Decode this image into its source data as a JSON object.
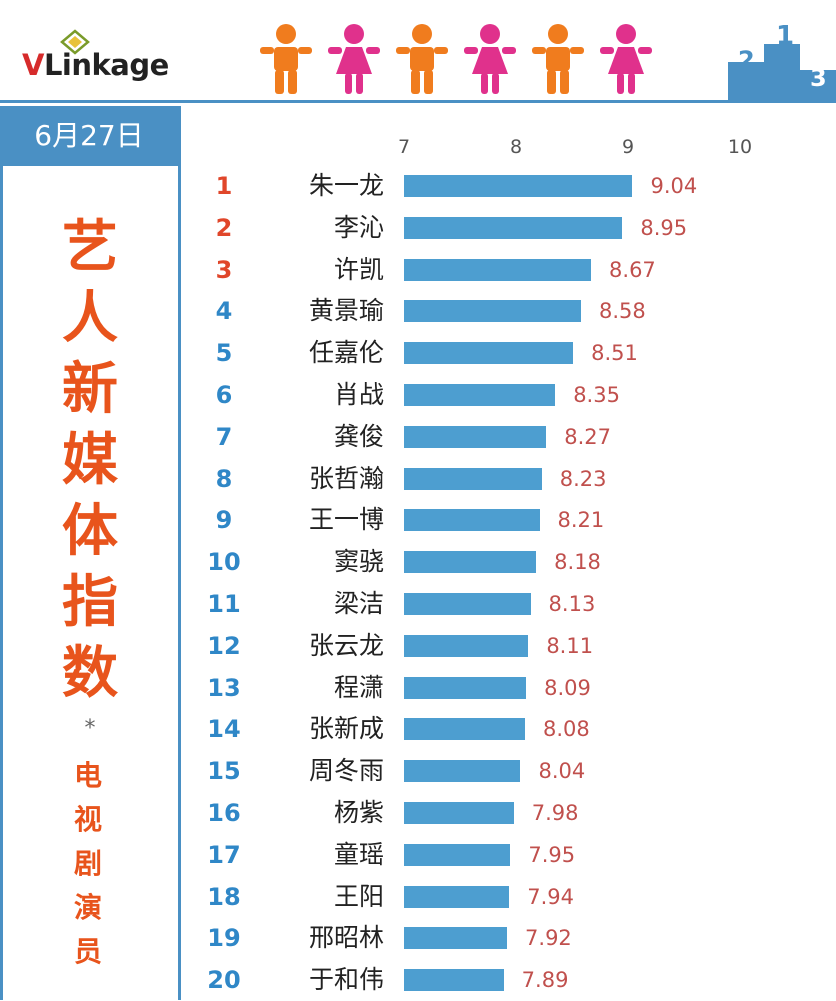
{
  "header": {
    "logo_v": "V",
    "logo_rest": "Linkage"
  },
  "date": "6月27日",
  "title_chars": [
    "艺",
    "人",
    "新",
    "媒",
    "体",
    "指",
    "数"
  ],
  "title_star": "*",
  "subtitle_chars": [
    "电",
    "视",
    "剧",
    "演",
    "员"
  ],
  "colors": {
    "accent": "#4a90c4",
    "bar": "#4d9ed0",
    "title": "#e8541c",
    "value": "#c0504d",
    "rank_top": "#e0462a",
    "rank_rest": "#2f87c7",
    "male_icon": "#f07c1e",
    "female_icon": "#e0318c"
  },
  "chart_data": {
    "type": "bar",
    "orientation": "horizontal",
    "xlim": [
      7,
      10
    ],
    "ticks": [
      7,
      8,
      9,
      10
    ],
    "rows": [
      {
        "rank": "1",
        "name": "朱一龙",
        "value": 9.04,
        "label": "9.04"
      },
      {
        "rank": "2",
        "name": "李沁",
        "value": 8.95,
        "label": "8.95"
      },
      {
        "rank": "3",
        "name": "许凯",
        "value": 8.67,
        "label": "8.67"
      },
      {
        "rank": "4",
        "name": "黄景瑜",
        "value": 8.58,
        "label": "8.58"
      },
      {
        "rank": "5",
        "name": "任嘉伦",
        "value": 8.51,
        "label": "8.51"
      },
      {
        "rank": "6",
        "name": "肖战",
        "value": 8.35,
        "label": "8.35"
      },
      {
        "rank": "7",
        "name": "龚俊",
        "value": 8.27,
        "label": "8.27"
      },
      {
        "rank": "8",
        "name": "张哲瀚",
        "value": 8.23,
        "label": "8.23"
      },
      {
        "rank": "9",
        "name": "王一博",
        "value": 8.21,
        "label": "8.21"
      },
      {
        "rank": "10",
        "name": "窦骁",
        "value": 8.18,
        "label": "8.18"
      },
      {
        "rank": "11",
        "name": "梁洁",
        "value": 8.13,
        "label": "8.13"
      },
      {
        "rank": "12",
        "name": "张云龙",
        "value": 8.11,
        "label": "8.11"
      },
      {
        "rank": "13",
        "name": "程潇",
        "value": 8.09,
        "label": "8.09"
      },
      {
        "rank": "14",
        "name": "张新成",
        "value": 8.08,
        "label": "8.08"
      },
      {
        "rank": "15",
        "name": "周冬雨",
        "value": 8.04,
        "label": "8.04"
      },
      {
        "rank": "16",
        "name": "杨紫",
        "value": 7.98,
        "label": "7.98"
      },
      {
        "rank": "17",
        "name": "童瑶",
        "value": 7.95,
        "label": "7.95"
      },
      {
        "rank": "18",
        "name": "王阳",
        "value": 7.94,
        "label": "7.94"
      },
      {
        "rank": "19",
        "name": "邢昭林",
        "value": 7.92,
        "label": "7.92"
      },
      {
        "rank": "20",
        "name": "于和伟",
        "value": 7.89,
        "label": "7.89"
      }
    ]
  }
}
